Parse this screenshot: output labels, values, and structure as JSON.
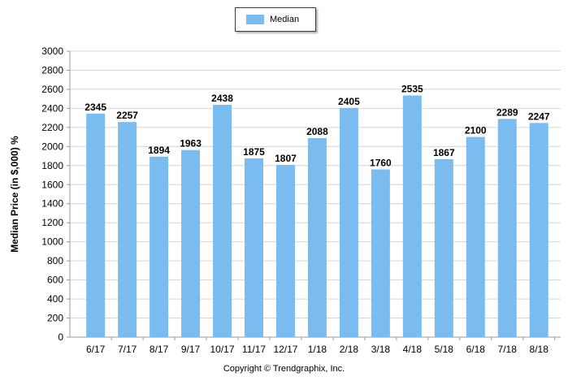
{
  "chart_data": {
    "type": "bar",
    "categories": [
      "6/17",
      "7/17",
      "8/17",
      "9/17",
      "10/17",
      "11/17",
      "12/17",
      "1/18",
      "2/18",
      "3/18",
      "4/18",
      "5/18",
      "6/18",
      "7/18",
      "8/18"
    ],
    "series": [
      {
        "name": "Median",
        "values": [
          2345,
          2257,
          1894,
          1963,
          2438,
          1875,
          1807,
          2088,
          2405,
          1760,
          2535,
          1867,
          2100,
          2289,
          2247
        ]
      }
    ],
    "ylabel": "Median Price (in $,000) %",
    "xlabel": "",
    "ylim": [
      0,
      3000
    ],
    "yticks": [
      0,
      200,
      400,
      600,
      800,
      1000,
      1200,
      1400,
      1600,
      1800,
      2000,
      2200,
      2400,
      2600,
      2800,
      3000
    ],
    "grid": true,
    "legend_position": "top-center",
    "colors": {
      "bar": "#7abcf0",
      "grid": "#d4d4d4",
      "axis": "#9a9a9a"
    }
  },
  "footer": {
    "copyright": "Copyright © Trendgraphix, Inc."
  }
}
